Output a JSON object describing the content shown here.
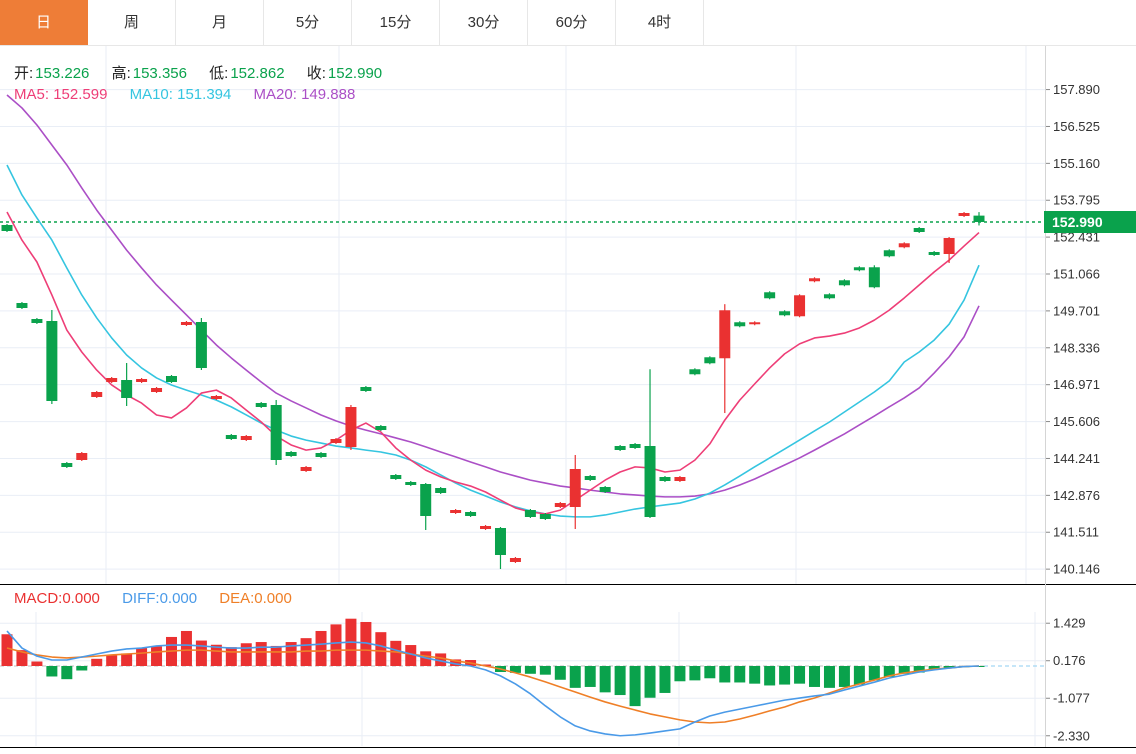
{
  "tabs": {
    "items": [
      {
        "label": "日",
        "active": true
      },
      {
        "label": "周",
        "active": false
      },
      {
        "label": "月",
        "active": false
      },
      {
        "label": "5分",
        "active": false
      },
      {
        "label": "15分",
        "active": false
      },
      {
        "label": "30分",
        "active": false
      },
      {
        "label": "60分",
        "active": false
      },
      {
        "label": "4时",
        "active": false
      }
    ]
  },
  "ohlc_info": {
    "open_label": "开:",
    "open": "153.226",
    "high_label": "高:",
    "high": "153.356",
    "low_label": "低:",
    "low": "152.862",
    "close_label": "收:",
    "close": "152.990"
  },
  "ma_info": {
    "ma5_label": "MA5:",
    "ma5": "152.599",
    "ma10_label": "MA10:",
    "ma10": "151.394",
    "ma20_label": "MA20:",
    "ma20": "149.888"
  },
  "macd_info": {
    "macd_label": "MACD:",
    "macd": "0.000",
    "diff_label": "DIFF:",
    "diff": "0.000",
    "dea_label": "DEA:",
    "dea": "0.000"
  },
  "price_axis": {
    "current": "152.990"
  },
  "colors": {
    "up": "#ea3131",
    "down": "#0aa24c",
    "ma5": "#ee3e77",
    "ma10": "#35c5e0",
    "ma20": "#ab4fc6",
    "diff": "#4a9ae8",
    "dea": "#ef7f27",
    "tab_accent": "#ee7d37",
    "grid": "#e9eef6",
    "axis_text": "#333333",
    "zero_dash": "#bfbfbf",
    "zero_dash_ext": "#8ecdf0",
    "panel_border": "#000000"
  },
  "chart_data": {
    "type": "candlestick+macd",
    "title": "",
    "legend": [
      "MA5",
      "MA10",
      "MA20",
      "MACD",
      "DIFF",
      "DEA"
    ],
    "price_ticks": [
      157.89,
      156.525,
      155.16,
      153.795,
      152.431,
      151.066,
      149.701,
      148.336,
      146.971,
      145.606,
      144.241,
      142.876,
      141.511,
      140.146
    ],
    "current_price": 152.99,
    "candles": [
      [
        152.879,
        152.916,
        152.62,
        152.657
      ],
      [
        149.993,
        150.03,
        149.771,
        149.808
      ],
      [
        149.401,
        149.438,
        149.216,
        149.253
      ],
      [
        149.327,
        149.734,
        146.256,
        146.367
      ],
      [
        144.073,
        144.11,
        143.888,
        143.925
      ],
      [
        144.184,
        144.48,
        144.147,
        144.443
      ],
      [
        146.515,
        146.737,
        146.478,
        146.7
      ],
      [
        147.07,
        147.255,
        147.033,
        147.218
      ],
      [
        147.144,
        147.773,
        146.182,
        146.478
      ],
      [
        147.07,
        147.218,
        147.033,
        147.181
      ],
      [
        146.7,
        146.885,
        146.663,
        146.848
      ],
      [
        147.292,
        147.329,
        147.033,
        147.07
      ],
      [
        149.179,
        149.327,
        149.142,
        149.29
      ],
      [
        149.29,
        149.438,
        147.514,
        147.588
      ],
      [
        146.441,
        146.589,
        146.404,
        146.552
      ],
      [
        145.109,
        145.146,
        144.924,
        144.961
      ],
      [
        144.924,
        145.109,
        144.887,
        145.072
      ],
      [
        146.293,
        146.33,
        146.108,
        146.145
      ],
      [
        146.219,
        146.404,
        143.999,
        144.184
      ],
      [
        144.48,
        144.517,
        144.295,
        144.332
      ],
      [
        143.777,
        143.962,
        143.74,
        143.925
      ],
      [
        144.443,
        144.48,
        144.258,
        144.295
      ],
      [
        144.813,
        144.998,
        144.776,
        144.961
      ],
      [
        144.665,
        146.219,
        144.554,
        146.145
      ],
      [
        146.885,
        146.922,
        146.7,
        146.737
      ],
      [
        145.442,
        145.479,
        145.257,
        145.294
      ],
      [
        143.629,
        143.666,
        143.444,
        143.481
      ],
      [
        143.37,
        143.407,
        143.222,
        143.259
      ],
      [
        143.296,
        143.333,
        141.594,
        142.112
      ],
      [
        143.148,
        143.185,
        142.926,
        142.963
      ],
      [
        142.223,
        142.371,
        142.186,
        142.334
      ],
      [
        142.26,
        142.297,
        142.075,
        142.112
      ],
      [
        141.631,
        141.779,
        141.594,
        141.742
      ],
      [
        141.668,
        141.705,
        140.151,
        140.669
      ],
      [
        140.41,
        140.595,
        140.373,
        140.558
      ],
      [
        142.334,
        142.371,
        142.038,
        142.075
      ],
      [
        142.186,
        142.223,
        141.964,
        142.001
      ],
      [
        142.445,
        142.63,
        142.408,
        142.593
      ],
      [
        142.445,
        144.369,
        141.631,
        143.851
      ],
      [
        143.592,
        143.629,
        143.407,
        143.444
      ],
      [
        143.185,
        143.222,
        142.963,
        143.0
      ],
      [
        144.702,
        144.739,
        144.517,
        144.554
      ],
      [
        144.776,
        144.813,
        144.591,
        144.628
      ],
      [
        144.702,
        147.541,
        142.038,
        142.075
      ],
      [
        143.555,
        143.592,
        143.37,
        143.407
      ],
      [
        143.407,
        143.592,
        143.37,
        143.555
      ],
      [
        147.541,
        147.578,
        147.319,
        147.356
      ],
      [
        147.985,
        148.022,
        147.726,
        147.763
      ],
      [
        147.948,
        149.95,
        145.922,
        149.724
      ],
      [
        149.28,
        149.317,
        149.095,
        149.132
      ],
      [
        149.206,
        149.317,
        149.169,
        149.28
      ],
      [
        150.39,
        150.427,
        150.131,
        150.168
      ],
      [
        149.687,
        149.724,
        149.502,
        149.539
      ],
      [
        149.502,
        150.316,
        149.465,
        150.279
      ],
      [
        150.797,
        150.945,
        150.76,
        150.908
      ],
      [
        150.316,
        150.353,
        150.131,
        150.168
      ],
      [
        150.834,
        150.871,
        150.612,
        150.649
      ],
      [
        151.315,
        151.352,
        151.167,
        151.204
      ],
      [
        151.315,
        151.389,
        150.538,
        150.575
      ],
      [
        151.944,
        151.981,
        151.685,
        151.722
      ],
      [
        152.055,
        152.24,
        152.018,
        152.203
      ],
      [
        152.768,
        152.805,
        152.583,
        152.62
      ],
      [
        151.88,
        151.917,
        151.732,
        151.769
      ],
      [
        151.806,
        152.435,
        151.473,
        152.398
      ],
      [
        153.212,
        153.36,
        153.175,
        153.323
      ],
      [
        153.226,
        153.356,
        152.862,
        152.99
      ]
    ],
    "ma5": [
      153.36,
      152.32,
      151.51,
      150.29,
      148.99,
      148.18,
      147.51,
      146.96,
      146.59,
      146.29,
      145.85,
      145.74,
      146.11,
      146.66,
      146.77,
      146.48,
      146.03,
      145.59,
      145.07,
      144.74,
      144.55,
      144.63,
      144.92,
      145.29,
      145.55,
      145.22,
      144.63,
      144.18,
      143.81,
      143.56,
      143.37,
      143.22,
      143.0,
      142.7,
      142.41,
      142.26,
      142.19,
      142.33,
      142.7,
      143.07,
      143.44,
      143.74,
      143.93,
      143.89,
      143.74,
      143.81,
      144.18,
      144.78,
      145.66,
      146.4,
      147.0,
      147.59,
      148.11,
      148.48,
      148.7,
      148.77,
      148.88,
      149.07,
      149.36,
      149.73,
      150.18,
      150.66,
      151.14,
      151.58,
      152.1,
      152.599
    ],
    "ma10": [
      155.1,
      153.99,
      153.14,
      152.32,
      151.29,
      150.29,
      149.44,
      148.7,
      148.07,
      147.59,
      147.22,
      146.96,
      146.77,
      146.59,
      146.4,
      146.15,
      145.85,
      145.55,
      145.29,
      145.07,
      144.92,
      144.81,
      144.7,
      144.63,
      144.55,
      144.48,
      144.37,
      144.18,
      143.93,
      143.63,
      143.33,
      143.07,
      142.85,
      142.63,
      142.45,
      142.3,
      142.19,
      142.11,
      142.08,
      142.08,
      142.15,
      142.26,
      142.37,
      142.45,
      142.52,
      142.59,
      142.74,
      142.96,
      143.26,
      143.59,
      143.93,
      144.26,
      144.59,
      144.92,
      145.26,
      145.59,
      145.96,
      146.33,
      146.7,
      147.11,
      147.81,
      148.18,
      148.62,
      149.21,
      150.1,
      151.394
    ],
    "ma20": [
      157.69,
      157.21,
      156.58,
      155.84,
      155.1,
      154.25,
      153.43,
      152.69,
      151.95,
      151.29,
      150.66,
      150.1,
      149.55,
      148.99,
      148.44,
      147.96,
      147.51,
      147.07,
      146.66,
      146.37,
      146.11,
      145.85,
      145.63,
      145.44,
      145.29,
      145.15,
      145.0,
      144.85,
      144.67,
      144.48,
      144.3,
      144.11,
      143.93,
      143.74,
      143.59,
      143.44,
      143.33,
      143.22,
      143.15,
      143.07,
      143.0,
      142.93,
      142.89,
      142.85,
      142.82,
      142.82,
      142.85,
      142.93,
      143.07,
      143.26,
      143.48,
      143.74,
      144.0,
      144.26,
      144.55,
      144.85,
      145.15,
      145.48,
      145.81,
      146.15,
      146.48,
      146.85,
      147.4,
      148.0,
      148.74,
      149.888
    ],
    "macd": {
      "ticks": [
        1.429,
        0.176,
        -1.077,
        -2.33
      ],
      "histogram": [
        1.06,
        0.53,
        0.15,
        -0.35,
        -0.44,
        -0.15,
        0.24,
        0.35,
        0.42,
        0.6,
        0.65,
        0.97,
        1.17,
        0.85,
        0.71,
        0.63,
        0.76,
        0.8,
        0.67,
        0.8,
        0.93,
        1.17,
        1.39,
        1.58,
        1.47,
        1.13,
        0.84,
        0.7,
        0.49,
        0.42,
        0.22,
        0.2,
        0.05,
        -0.2,
        -0.23,
        -0.26,
        -0.29,
        -0.46,
        -0.73,
        -0.7,
        -0.88,
        -0.97,
        -1.34,
        -1.06,
        -0.9,
        -0.51,
        -0.48,
        -0.41,
        -0.55,
        -0.55,
        -0.59,
        -0.65,
        -0.62,
        -0.59,
        -0.7,
        -0.73,
        -0.7,
        -0.62,
        -0.48,
        -0.36,
        -0.26,
        -0.22,
        -0.1,
        -0.08,
        -0.04,
        -0.02
      ],
      "diff": [
        1.17,
        0.6,
        0.33,
        0.2,
        0.2,
        0.3,
        0.4,
        0.5,
        0.57,
        0.6,
        0.67,
        0.7,
        0.7,
        0.67,
        0.63,
        0.6,
        0.6,
        0.63,
        0.63,
        0.67,
        0.7,
        0.73,
        0.77,
        0.8,
        0.77,
        0.67,
        0.53,
        0.4,
        0.27,
        0.17,
        0.07,
        0.0,
        -0.13,
        -0.33,
        -0.6,
        -0.93,
        -1.33,
        -1.7,
        -2.0,
        -2.17,
        -2.27,
        -2.33,
        -2.3,
        -2.24,
        -2.17,
        -2.1,
        -1.87,
        -1.67,
        -1.54,
        -1.44,
        -1.34,
        -1.24,
        -1.14,
        -1.07,
        -1.0,
        -0.94,
        -0.8,
        -0.67,
        -0.54,
        -0.4,
        -0.3,
        -0.2,
        -0.13,
        -0.07,
        -0.02,
        0.0
      ],
      "dea": [
        0.6,
        0.47,
        0.37,
        0.3,
        0.27,
        0.3,
        0.33,
        0.37,
        0.4,
        0.43,
        0.47,
        0.5,
        0.53,
        0.53,
        0.5,
        0.47,
        0.47,
        0.47,
        0.47,
        0.47,
        0.5,
        0.5,
        0.53,
        0.53,
        0.53,
        0.5,
        0.47,
        0.4,
        0.33,
        0.27,
        0.17,
        0.1,
        0.0,
        -0.1,
        -0.23,
        -0.37,
        -0.53,
        -0.7,
        -0.87,
        -1.04,
        -1.2,
        -1.34,
        -1.47,
        -1.6,
        -1.7,
        -1.8,
        -1.87,
        -1.9,
        -1.87,
        -1.77,
        -1.64,
        -1.5,
        -1.37,
        -1.2,
        -1.07,
        -0.9,
        -0.73,
        -0.6,
        -0.47,
        -0.33,
        -0.23,
        -0.17,
        -0.1,
        -0.07,
        -0.02,
        0.0
      ]
    }
  }
}
